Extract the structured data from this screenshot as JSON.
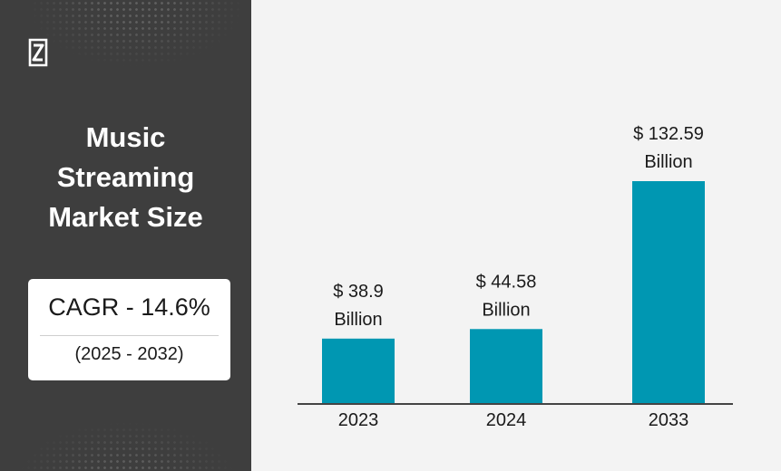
{
  "panel": {
    "title": "Music\nStreaming\nMarket Size",
    "logo_icon": "brand-logo-icon",
    "cagr": {
      "value": "CAGR - 14.6%",
      "period": "(2025 - 2032)"
    }
  },
  "colors": {
    "panel_bg": "#3e3e3e",
    "chart_bg": "#f3f3f3",
    "bar": "#0097b2",
    "axis": "#444444"
  },
  "chart_data": {
    "type": "bar",
    "title": "",
    "xlabel": "",
    "ylabel": "",
    "categories": [
      "2023",
      "2024",
      "2033"
    ],
    "values": [
      38.9,
      44.58,
      132.59
    ],
    "data_labels": [
      [
        "$ 38.9",
        "Billion"
      ],
      [
        "$ 44.58",
        "Billion"
      ],
      [
        "$ 132.59",
        "Billion"
      ]
    ],
    "grid": false,
    "legend": "none"
  }
}
